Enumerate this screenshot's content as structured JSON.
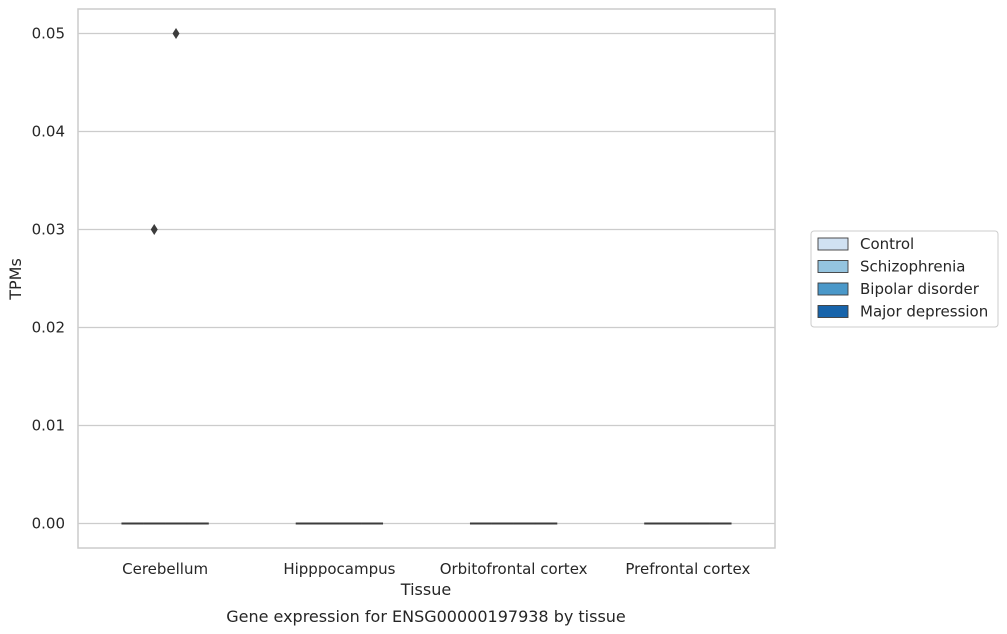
{
  "chart_data": {
    "type": "box",
    "xlabel": "Tissue",
    "ylabel": "TPMs",
    "caption": "Gene expression for ENSG00000197938 by tissue",
    "ylim": [
      -0.0025,
      0.0525
    ],
    "yticks": [
      "0.00",
      "0.01",
      "0.02",
      "0.03",
      "0.04",
      "0.05"
    ],
    "ytick_values": [
      0,
      0.01,
      0.02,
      0.03,
      0.04,
      0.05
    ],
    "grid": true,
    "legend_placement": "right",
    "categories": [
      "Cerebellum",
      "Hipppocampus",
      "Orbitofrontal cortex",
      "Prefrontal cortex"
    ],
    "series": [
      {
        "name": "Control",
        "color": "#d0e1f2",
        "boxes": [
          {
            "q1": 0,
            "median": 0,
            "q3": 0,
            "whisker_low": 0,
            "whisker_high": 0,
            "outliers": []
          },
          {
            "q1": 0,
            "median": 0,
            "q3": 0,
            "whisker_low": 0,
            "whisker_high": 0,
            "outliers": []
          },
          {
            "q1": 0,
            "median": 0,
            "q3": 0,
            "whisker_low": 0,
            "whisker_high": 0,
            "outliers": []
          },
          {
            "q1": 0,
            "median": 0,
            "q3": 0,
            "whisker_low": 0,
            "whisker_high": 0,
            "outliers": []
          }
        ]
      },
      {
        "name": "Schizophrenia",
        "color": "#94c4df",
        "boxes": [
          {
            "q1": 0,
            "median": 0,
            "q3": 0,
            "whisker_low": 0,
            "whisker_high": 0,
            "outliers": [
              0.03
            ]
          },
          {
            "q1": 0,
            "median": 0,
            "q3": 0,
            "whisker_low": 0,
            "whisker_high": 0,
            "outliers": []
          },
          {
            "q1": 0,
            "median": 0,
            "q3": 0,
            "whisker_low": 0,
            "whisker_high": 0,
            "outliers": []
          },
          {
            "q1": 0,
            "median": 0,
            "q3": 0,
            "whisker_low": 0,
            "whisker_high": 0,
            "outliers": []
          }
        ]
      },
      {
        "name": "Bipolar disorder",
        "color": "#4a98c9",
        "boxes": [
          {
            "q1": 0,
            "median": 0,
            "q3": 0,
            "whisker_low": 0,
            "whisker_high": 0,
            "outliers": [
              0.05
            ]
          },
          {
            "q1": 0,
            "median": 0,
            "q3": 0,
            "whisker_low": 0,
            "whisker_high": 0,
            "outliers": []
          },
          {
            "q1": 0,
            "median": 0,
            "q3": 0,
            "whisker_low": 0,
            "whisker_high": 0,
            "outliers": []
          },
          {
            "q1": 0,
            "median": 0,
            "q3": 0,
            "whisker_low": 0,
            "whisker_high": 0,
            "outliers": []
          }
        ]
      },
      {
        "name": "Major depression",
        "color": "#1764ab",
        "boxes": [
          {
            "q1": 0,
            "median": 0,
            "q3": 0,
            "whisker_low": 0,
            "whisker_high": 0,
            "outliers": []
          },
          {
            "q1": 0,
            "median": 0,
            "q3": 0,
            "whisker_low": 0,
            "whisker_high": 0,
            "outliers": []
          },
          {
            "q1": 0,
            "median": 0,
            "q3": 0,
            "whisker_low": 0,
            "whisker_high": 0,
            "outliers": []
          },
          {
            "q1": 0,
            "median": 0,
            "q3": 0,
            "whisker_low": 0,
            "whisker_high": 0,
            "outliers": []
          }
        ]
      }
    ]
  },
  "colors": {
    "grid": "#cccccc",
    "frame": "#cccccc",
    "line": "#3c3c3c",
    "text": "#262626"
  }
}
